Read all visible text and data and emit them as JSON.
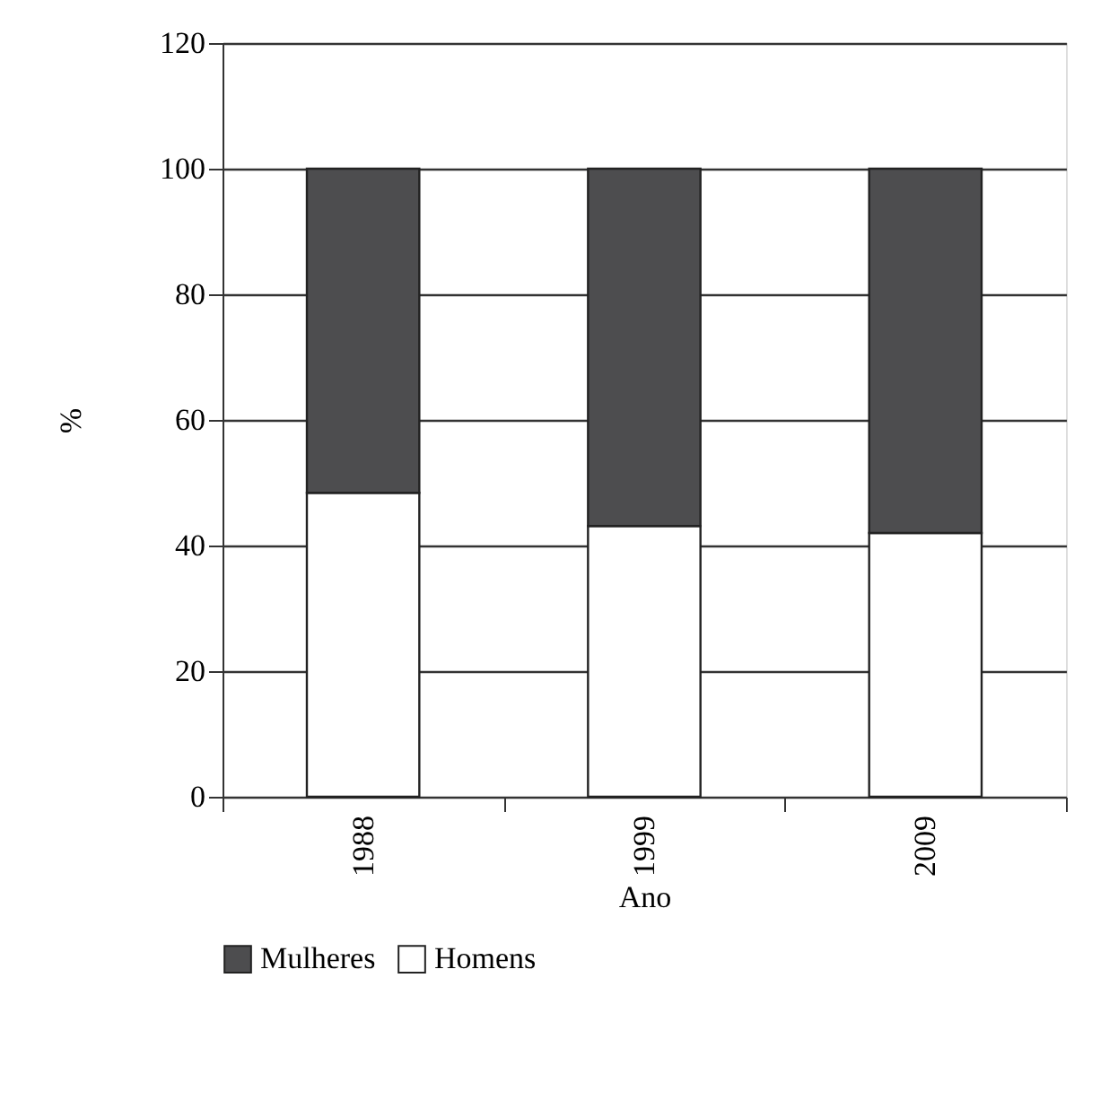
{
  "chart_data": {
    "type": "bar",
    "stacked": true,
    "xlabel": "Ano",
    "ylabel": "%",
    "categories": [
      "1988",
      "1999",
      "2009"
    ],
    "series": [
      {
        "name": "Homens",
        "color": "#ffffff",
        "values": [
          48.4,
          43.1,
          42.0
        ]
      },
      {
        "name": "Mulheres",
        "color": "#4d4d4f",
        "values": [
          51.6,
          56.9,
          58.0
        ]
      }
    ],
    "ylim": [
      0,
      120
    ],
    "yticks": [
      0,
      20,
      40,
      60,
      80,
      100,
      120
    ],
    "grid": "y",
    "legend": "bottom"
  }
}
